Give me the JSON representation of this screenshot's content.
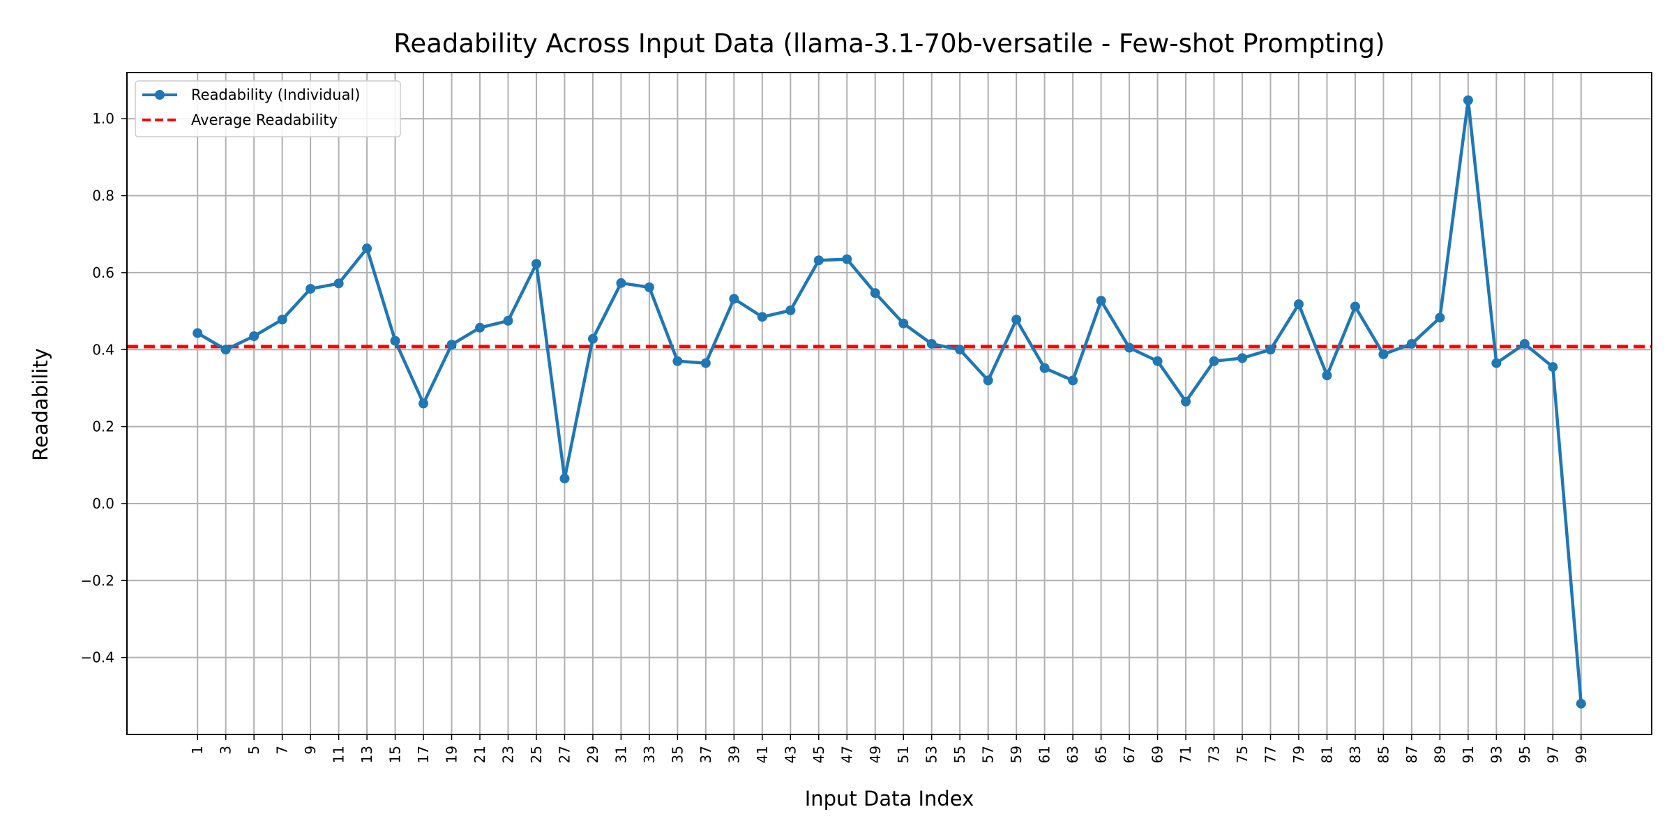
{
  "chart_data": {
    "type": "line",
    "title": "Readability Across Input Data (llama-3.1-70b-versatile - Few-shot Prompting)",
    "xlabel": "Input Data Index",
    "ylabel": "Readability",
    "x": [
      1,
      3,
      5,
      7,
      9,
      11,
      13,
      15,
      17,
      19,
      21,
      23,
      25,
      27,
      29,
      31,
      33,
      35,
      37,
      39,
      41,
      43,
      45,
      47,
      49,
      51,
      53,
      55,
      57,
      59,
      61,
      63,
      65,
      67,
      69,
      71,
      73,
      75,
      77,
      79,
      81,
      83,
      85,
      87,
      89,
      91,
      93,
      95,
      97,
      99
    ],
    "x_tick_labels": [
      "1",
      "3",
      "5",
      "7",
      "9",
      "11",
      "13",
      "15",
      "17",
      "19",
      "21",
      "23",
      "25",
      "27",
      "29",
      "31",
      "33",
      "35",
      "37",
      "39",
      "41",
      "43",
      "45",
      "47",
      "49",
      "51",
      "53",
      "55",
      "57",
      "59",
      "61",
      "63",
      "65",
      "67",
      "69",
      "71",
      "73",
      "75",
      "77",
      "79",
      "81",
      "83",
      "85",
      "87",
      "89",
      "91",
      "93",
      "95",
      "97",
      "99"
    ],
    "xlim": [
      -4,
      104
    ],
    "ylim": [
      -0.6,
      1.12
    ],
    "y_ticks": [
      -0.4,
      -0.2,
      0.0,
      0.2,
      0.4,
      0.6,
      0.8,
      1.0
    ],
    "y_tick_labels": [
      "−0.4",
      "−0.2",
      "0.0",
      "0.2",
      "0.4",
      "0.6",
      "0.8",
      "1.0"
    ],
    "grid": true,
    "legend_position": "top-left",
    "series": [
      {
        "name": "Readability (Individual)",
        "style": "solid-with-markers",
        "color": "#1f77b4",
        "values": [
          0.443,
          0.4,
          0.435,
          0.478,
          0.558,
          0.572,
          0.663,
          0.423,
          0.26,
          0.413,
          0.457,
          0.475,
          0.623,
          0.065,
          0.428,
          0.573,
          0.562,
          0.37,
          0.365,
          0.532,
          0.485,
          0.502,
          0.632,
          0.635,
          0.547,
          0.468,
          0.415,
          0.4,
          0.32,
          0.478,
          0.352,
          0.32,
          0.527,
          0.405,
          0.37,
          0.265,
          0.37,
          0.378,
          0.4,
          0.518,
          0.333,
          0.512,
          0.388,
          0.415,
          0.483,
          1.048,
          0.365,
          0.415,
          0.355,
          -0.52
        ]
      },
      {
        "name": "Average Readability",
        "style": "dashed",
        "color": "#ff0000",
        "value": 0.408
      }
    ]
  }
}
